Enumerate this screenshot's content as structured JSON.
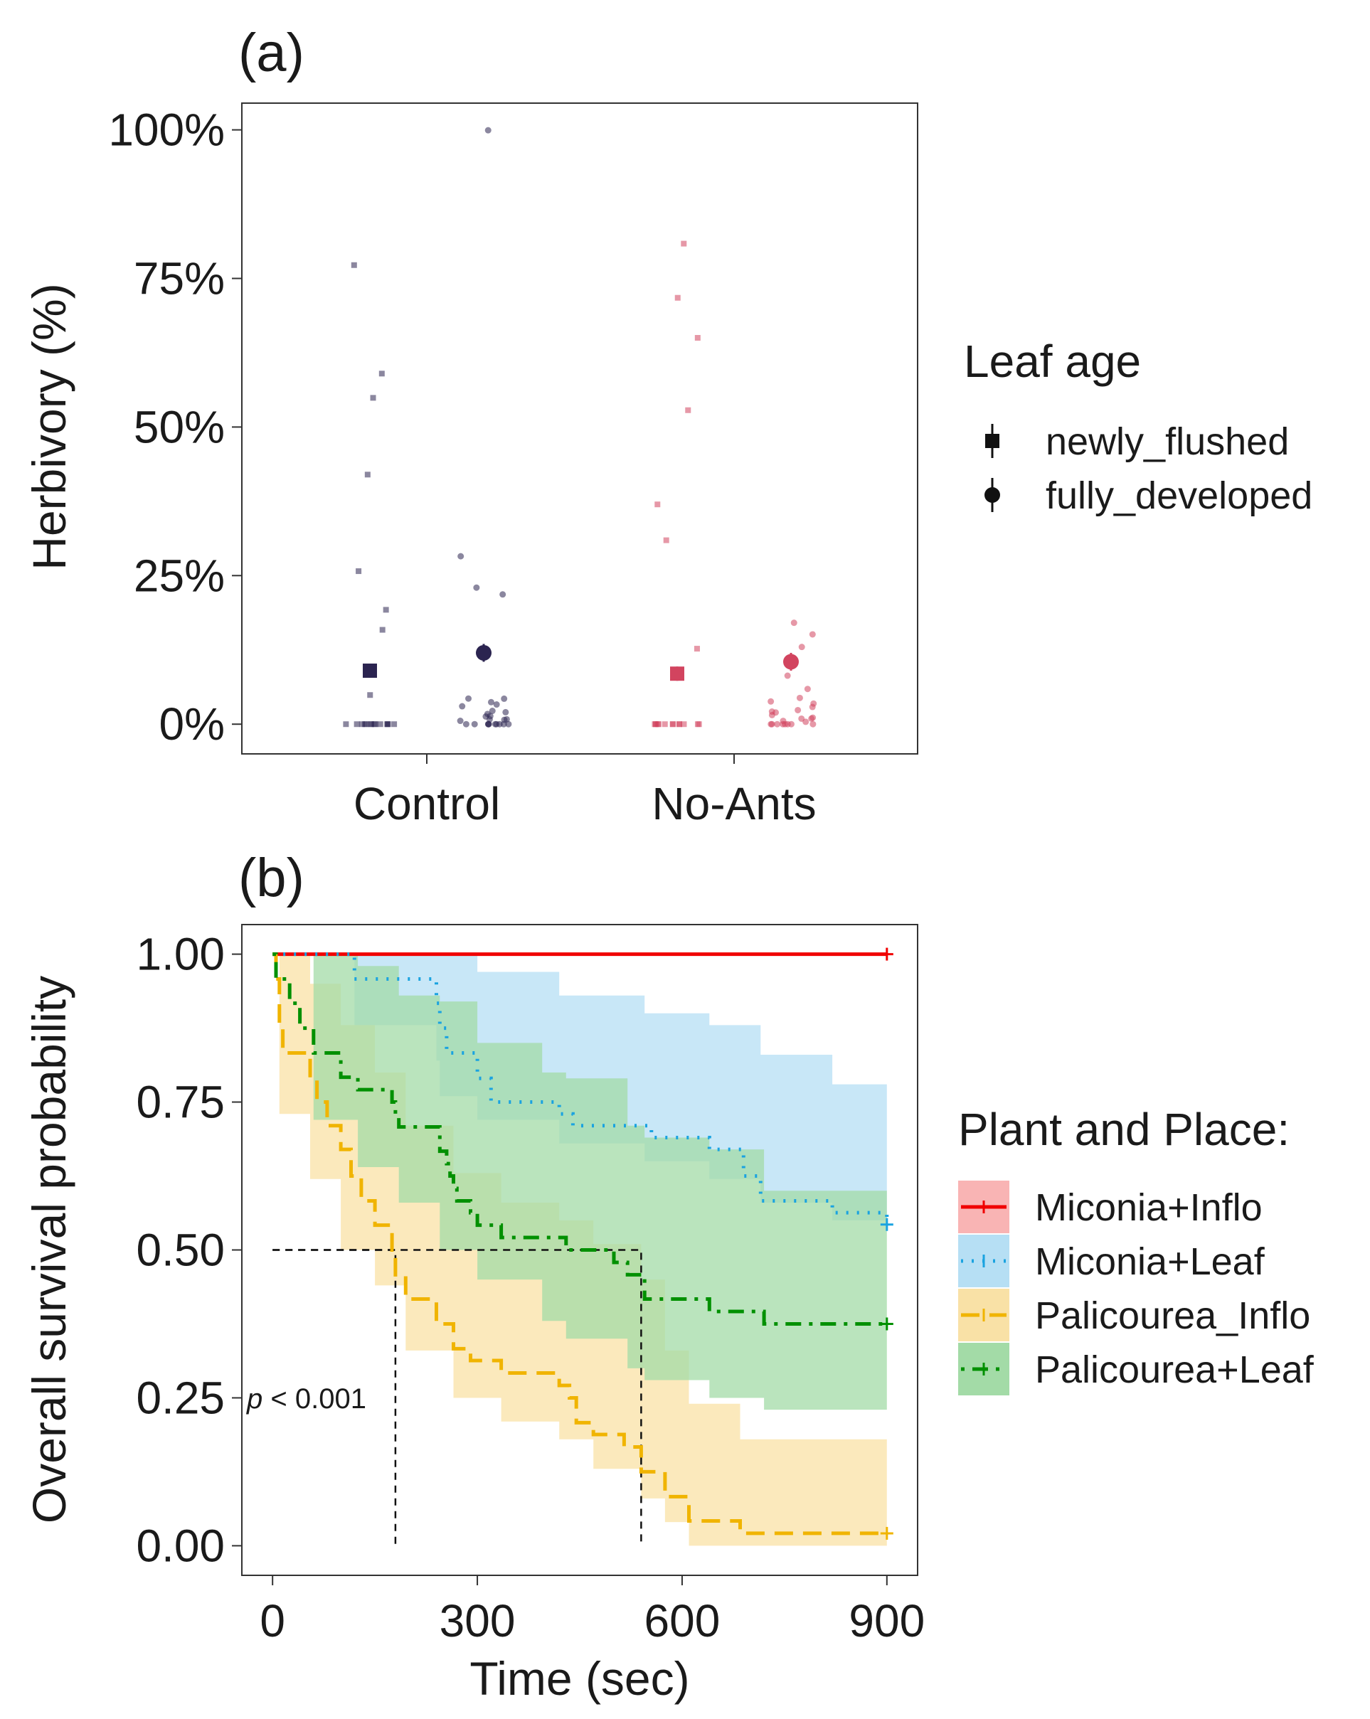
{
  "chart_data": [
    {
      "panel": "(a)",
      "type": "scatter",
      "title": "",
      "xlabel": "",
      "ylabel": "Herbivory (%)",
      "categories": [
        "Control",
        "No-Ants"
      ],
      "yticks": [
        "0%",
        "25%",
        "50%",
        "75%",
        "100%"
      ],
      "ylim": [
        -0.05,
        1.045
      ],
      "grid": false,
      "legend": {
        "title": "Leaf age",
        "placement": "right",
        "items": [
          {
            "label": "newly_flushed",
            "shape": "square"
          },
          {
            "label": "fully_developed",
            "shape": "circle"
          }
        ]
      },
      "colors": {
        "Control": "#2b2450",
        "No-Ants": "#d2445f"
      },
      "series": [
        {
          "group": "Control",
          "leaf_age": "newly_flushed",
          "mean": 0.09,
          "ci": [
            0.078,
            0.102
          ],
          "points": [
            0.77,
            0.59,
            0.55,
            0.42,
            0.26,
            0.19,
            0.16,
            0.05,
            0.0,
            0.0,
            0.0,
            0.0,
            0.0,
            0.0,
            0.0,
            0.0,
            0.0,
            0.0,
            0.0,
            0.0,
            0.0,
            0.0
          ]
        },
        {
          "group": "Control",
          "leaf_age": "fully_developed",
          "mean": 0.12,
          "ci": [
            0.105,
            0.135
          ],
          "points": [
            1.0,
            0.28,
            0.23,
            0.22,
            0.045,
            0.04,
            0.038,
            0.035,
            0.03,
            0.025,
            0.02,
            0.018,
            0.015,
            0.012,
            0.01,
            0.008,
            0.005,
            0.003,
            0.0,
            0.0,
            0.0,
            0.0,
            0.0,
            0.0,
            0.0,
            0.0,
            0.0,
            0.0
          ]
        },
        {
          "group": "No-Ants",
          "leaf_age": "newly_flushed",
          "mean": 0.085,
          "ci": [
            0.073,
            0.097
          ],
          "points": [
            0.81,
            0.72,
            0.65,
            0.53,
            0.37,
            0.31,
            0.13,
            0.0,
            0.0,
            0.0,
            0.0,
            0.0,
            0.0,
            0.0,
            0.0,
            0.0,
            0.0,
            0.0,
            0.0,
            0.0
          ]
        },
        {
          "group": "No-Ants",
          "leaf_age": "fully_developed",
          "mean": 0.105,
          "ci": [
            0.09,
            0.12
          ],
          "points": [
            0.17,
            0.15,
            0.13,
            0.11,
            0.08,
            0.06,
            0.045,
            0.04,
            0.035,
            0.03,
            0.025,
            0.02,
            0.018,
            0.015,
            0.012,
            0.01,
            0.008,
            0.005,
            0.003,
            0.0,
            0.0,
            0.0,
            0.0,
            0.0,
            0.0,
            0.0,
            0.0
          ]
        }
      ]
    },
    {
      "panel": "(b)",
      "type": "line",
      "subtype": "kaplan-meier step",
      "title": "",
      "xlabel": "Time (sec)",
      "ylabel": "Overall survival probability",
      "xticks": [
        "0",
        "300",
        "600",
        "900"
      ],
      "yticks": [
        "0.00",
        "0.25",
        "0.50",
        "0.75",
        "1.00"
      ],
      "xlim": [
        -45,
        945
      ],
      "ylim": [
        -0.05,
        1.05
      ],
      "grid": false,
      "annotation": {
        "text_italic": "p",
        "text_rest": " < 0.001",
        "x": 0,
        "y": 0.25
      },
      "median_lines": [
        {
          "x": 180,
          "y": 0.5
        },
        {
          "x": 540,
          "y": 0.5
        }
      ],
      "legend": {
        "title": "Plant and Place:",
        "placement": "right",
        "items": [
          {
            "label": "Miconia+Inflo",
            "color": "#f00000",
            "fill": "#f9b4b4",
            "dash": "solid"
          },
          {
            "label": "Miconia+Leaf",
            "color": "#1aa3e0",
            "fill": "#b6dff4",
            "dash": "dotted"
          },
          {
            "label": "Palicourea_Inflo",
            "color": "#f0b400",
            "fill": "#f9e1a6",
            "dash": "dashed"
          },
          {
            "label": "Palicourea+Leaf",
            "color": "#009000",
            "fill": "#a3dba7",
            "dash": "dotdash"
          }
        ]
      },
      "series": [
        {
          "name": "Miconia+Inflo",
          "color": "#f00000",
          "fill": "#f9b4b4",
          "steps": [
            [
              0,
              1.0
            ],
            [
              900,
              1.0
            ]
          ],
          "ci_steps": [],
          "censor": [
            900
          ]
        },
        {
          "name": "Miconia+Leaf",
          "color": "#1aa3e0",
          "fill": "#b6dff4",
          "steps": [
            [
              0,
              1.0
            ],
            [
              120,
              0.958
            ],
            [
              240,
              0.917
            ],
            [
              245,
              0.875
            ],
            [
              255,
              0.833
            ],
            [
              300,
              0.79
            ],
            [
              320,
              0.75
            ],
            [
              420,
              0.73
            ],
            [
              440,
              0.71
            ],
            [
              545,
              0.71
            ],
            [
              555,
              0.69
            ],
            [
              640,
              0.67
            ],
            [
              690,
              0.625
            ],
            [
              715,
              0.583
            ],
            [
              820,
              0.563
            ],
            [
              900,
              0.543
            ]
          ],
          "ci_steps": [
            [
              0,
              1.0,
              1.0
            ],
            [
              120,
              1.0,
              0.88
            ],
            [
              240,
              1.0,
              0.82
            ],
            [
              245,
              1.0,
              0.76
            ],
            [
              300,
              0.97,
              0.72
            ],
            [
              420,
              0.93,
              0.68
            ],
            [
              545,
              0.9,
              0.65
            ],
            [
              640,
              0.88,
              0.62
            ],
            [
              715,
              0.83,
              0.58
            ],
            [
              820,
              0.78,
              0.55
            ],
            [
              900,
              0.78,
              0.55
            ]
          ],
          "censor": [
            900
          ]
        },
        {
          "name": "Palicourea_Inflo",
          "color": "#f0b400",
          "fill": "#f9e1a6",
          "steps": [
            [
              0,
              1.0
            ],
            [
              5,
              0.958
            ],
            [
              10,
              0.875
            ],
            [
              15,
              0.833
            ],
            [
              55,
              0.79
            ],
            [
              65,
              0.75
            ],
            [
              80,
              0.71
            ],
            [
              100,
              0.67
            ],
            [
              115,
              0.625
            ],
            [
              130,
              0.583
            ],
            [
              150,
              0.542
            ],
            [
              175,
              0.5
            ],
            [
              180,
              0.458
            ],
            [
              195,
              0.417
            ],
            [
              240,
              0.375
            ],
            [
              265,
              0.333
            ],
            [
              290,
              0.313
            ],
            [
              335,
              0.292
            ],
            [
              420,
              0.271
            ],
            [
              435,
              0.25
            ],
            [
              445,
              0.208
            ],
            [
              470,
              0.188
            ],
            [
              515,
              0.167
            ],
            [
              540,
              0.125
            ],
            [
              575,
              0.083
            ],
            [
              610,
              0.042
            ],
            [
              685,
              0.021
            ],
            [
              900,
              0.021
            ]
          ],
          "ci_steps": [
            [
              0,
              1.0,
              1.0
            ],
            [
              10,
              1.0,
              0.73
            ],
            [
              55,
              0.95,
              0.62
            ],
            [
              100,
              0.88,
              0.5
            ],
            [
              150,
              0.8,
              0.44
            ],
            [
              195,
              0.71,
              0.33
            ],
            [
              265,
              0.63,
              0.25
            ],
            [
              335,
              0.58,
              0.21
            ],
            [
              420,
              0.55,
              0.18
            ],
            [
              470,
              0.51,
              0.13
            ],
            [
              540,
              0.45,
              0.08
            ],
            [
              575,
              0.33,
              0.04
            ],
            [
              610,
              0.24,
              0.0
            ],
            [
              685,
              0.18,
              0.0
            ],
            [
              900,
              0.18,
              0.0
            ]
          ],
          "censor": [
            900
          ]
        },
        {
          "name": "Palicourea+Leaf",
          "color": "#009000",
          "fill": "#a3dba7",
          "steps": [
            [
              0,
              1.0
            ],
            [
              5,
              0.958
            ],
            [
              25,
              0.917
            ],
            [
              40,
              0.875
            ],
            [
              60,
              0.833
            ],
            [
              100,
              0.792
            ],
            [
              125,
              0.771
            ],
            [
              175,
              0.75
            ],
            [
              180,
              0.729
            ],
            [
              185,
              0.708
            ],
            [
              245,
              0.667
            ],
            [
              255,
              0.646
            ],
            [
              260,
              0.625
            ],
            [
              265,
              0.604
            ],
            [
              270,
              0.583
            ],
            [
              290,
              0.563
            ],
            [
              300,
              0.542
            ],
            [
              335,
              0.521
            ],
            [
              395,
              0.521
            ],
            [
              430,
              0.5
            ],
            [
              500,
              0.479
            ],
            [
              520,
              0.458
            ],
            [
              545,
              0.417
            ],
            [
              640,
              0.396
            ],
            [
              720,
              0.375
            ],
            [
              900,
              0.375
            ]
          ],
          "ci_steps": [
            [
              0,
              1.0,
              1.0
            ],
            [
              60,
              1.0,
              0.72
            ],
            [
              125,
              0.98,
              0.64
            ],
            [
              185,
              0.93,
              0.58
            ],
            [
              245,
              0.92,
              0.5
            ],
            [
              300,
              0.85,
              0.45
            ],
            [
              395,
              0.8,
              0.38
            ],
            [
              430,
              0.79,
              0.35
            ],
            [
              520,
              0.71,
              0.3
            ],
            [
              545,
              0.69,
              0.28
            ],
            [
              640,
              0.67,
              0.25
            ],
            [
              720,
              0.6,
              0.23
            ],
            [
              900,
              0.6,
              0.23
            ]
          ],
          "censor": [
            900
          ]
        }
      ]
    }
  ]
}
